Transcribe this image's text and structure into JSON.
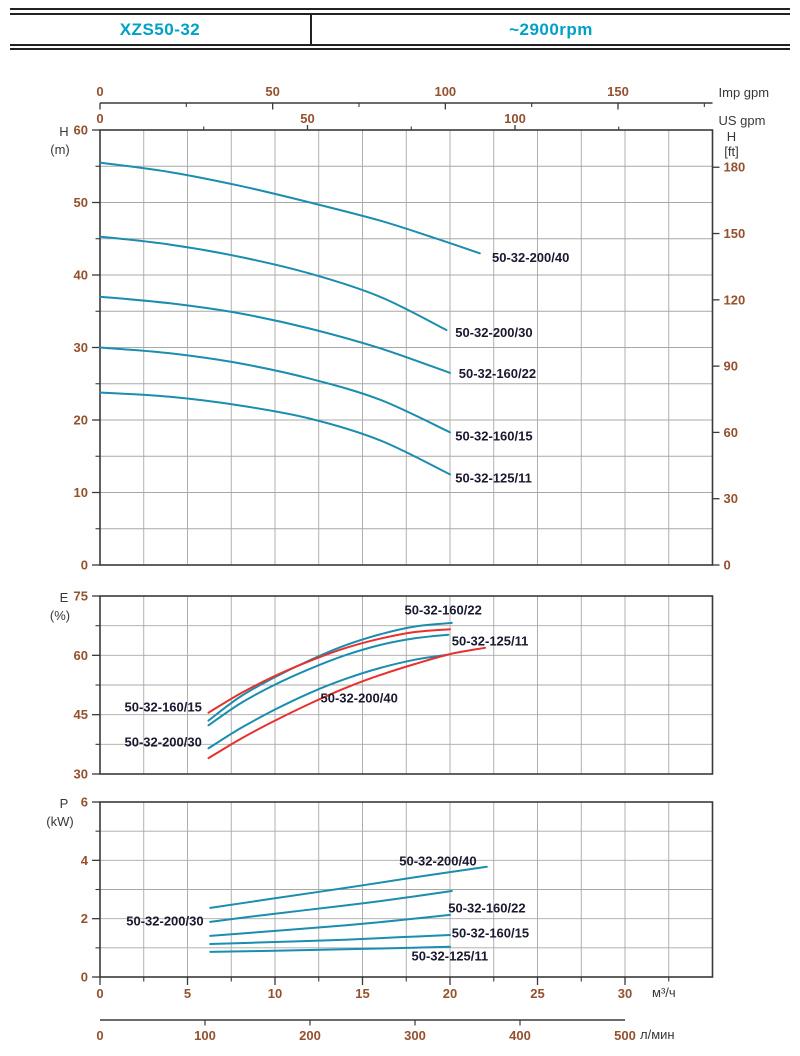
{
  "header": {
    "model": "XZS50-32",
    "speed": "~2900rpm"
  },
  "colors": {
    "teal": "#1b8dae",
    "red": "#e8312e",
    "grid": "#a8a8a8",
    "axis": "#3a3a3a",
    "tick_number": "#95502e",
    "curve_label": "#191930",
    "unit_label": "#38383a",
    "header_text": "#00a0c8"
  },
  "axes": {
    "imp_gpm": {
      "label": "Imp gpm",
      "major_ticks": [
        0,
        50,
        100,
        150
      ],
      "minor_ticks": [
        25,
        75,
        125,
        175
      ]
    },
    "us_gpm": {
      "label": "US gpm",
      "major_ticks": [
        0,
        50,
        100
      ],
      "minor_ticks": [
        25,
        75,
        125
      ]
    },
    "m3h": {
      "label": "м³/ч",
      "major_ticks": [
        0,
        5,
        10,
        15,
        20,
        25,
        30
      ],
      "minor_ticks": [
        2.5,
        7.5,
        12.5,
        17.5,
        22.5,
        27.5,
        32.5
      ]
    },
    "lmin": {
      "label": "л/мин",
      "major_ticks": [
        0,
        100,
        200,
        300,
        400,
        500
      ],
      "tick_marks": [
        100,
        200,
        300,
        400
      ]
    },
    "h_ft": {
      "label_line1": "H",
      "label_line2": "[ft]",
      "ticks": [
        0,
        30,
        60,
        90,
        120,
        150,
        180
      ]
    }
  },
  "chart_data": [
    {
      "id": "H",
      "type": "line",
      "grid": true,
      "ylabel_line1": "H",
      "ylabel_line2": "(m)",
      "xlabel": "м³/ч",
      "xlim": [
        0,
        35
      ],
      "ylim": [
        0,
        60
      ],
      "yticks": [
        0,
        10,
        20,
        30,
        40,
        50,
        60
      ],
      "yticks_minor": [
        5,
        15,
        25,
        35,
        45,
        55
      ],
      "series": [
        {
          "name": "50-32-200/40",
          "color": "teal",
          "points": [
            [
              0,
              55.5
            ],
            [
              4,
              54.2
            ],
            [
              8,
              52.3
            ],
            [
              12,
              50.0
            ],
            [
              16,
              47.5
            ],
            [
              19,
              45.2
            ],
            [
              21.7,
              43.0
            ]
          ],
          "label_at": [
            22.4,
            42.4
          ]
        },
        {
          "name": "50-32-200/30",
          "color": "teal",
          "points": [
            [
              0,
              45.3
            ],
            [
              4,
              44.2
            ],
            [
              8,
              42.5
            ],
            [
              12,
              40.2
            ],
            [
              16,
              37.0
            ],
            [
              19.8,
              32.4
            ]
          ],
          "label_at": [
            20.3,
            32.1
          ]
        },
        {
          "name": "50-32-160/22",
          "color": "teal",
          "points": [
            [
              0,
              37.0
            ],
            [
              4,
              36.1
            ],
            [
              8,
              34.7
            ],
            [
              12,
              32.6
            ],
            [
              16,
              29.9
            ],
            [
              20,
              26.5
            ]
          ],
          "label_at": [
            20.5,
            26.4
          ]
        },
        {
          "name": "50-32-160/15",
          "color": "teal",
          "points": [
            [
              0,
              30.0
            ],
            [
              4,
              29.2
            ],
            [
              8,
              27.8
            ],
            [
              12,
              25.7
            ],
            [
              16,
              22.8
            ],
            [
              20,
              18.3
            ]
          ],
          "label_at": [
            20.3,
            17.8
          ]
        },
        {
          "name": "50-32-125/11",
          "color": "teal",
          "points": [
            [
              0,
              23.8
            ],
            [
              4,
              23.2
            ],
            [
              8,
              22.0
            ],
            [
              12,
              20.2
            ],
            [
              16,
              17.2
            ],
            [
              20,
              12.5
            ]
          ],
          "label_at": [
            20.3,
            12.0
          ]
        }
      ]
    },
    {
      "id": "E",
      "type": "line",
      "grid": true,
      "ylabel_line1": "E",
      "ylabel_line2": "(%)",
      "xlabel": "м³/ч",
      "xlim": [
        0,
        35
      ],
      "ylim": [
        30,
        75
      ],
      "yticks": [
        30,
        45,
        60,
        75
      ],
      "yticks_minor": [
        37.5,
        52.5,
        67.5
      ],
      "series": [
        {
          "name": "50-32-160/22",
          "color": "teal",
          "points": [
            [
              6.2,
              43.5
            ],
            [
              8,
              49.5
            ],
            [
              10,
              54.5
            ],
            [
              12,
              58.8
            ],
            [
              14,
              62.5
            ],
            [
              16,
              65.3
            ],
            [
              18,
              67.3
            ],
            [
              20.1,
              68.2
            ]
          ],
          "label_at": [
            17.4,
            71.5
          ]
        },
        {
          "name": "50-32-125/11",
          "color": "teal",
          "points": [
            [
              6.2,
              42.3
            ],
            [
              8,
              47.8
            ],
            [
              10,
              52.6
            ],
            [
              12,
              56.6
            ],
            [
              14,
              60.0
            ],
            [
              16,
              62.6
            ],
            [
              18,
              64.3
            ],
            [
              19.9,
              65.2
            ]
          ],
          "label_at": [
            20.1,
            63.6
          ]
        },
        {
          "name": "50-32-200/30",
          "color": "teal",
          "points": [
            [
              6.2,
              36.5
            ],
            [
              8,
              41.5
            ],
            [
              10,
              46.3
            ],
            [
              12,
              50.5
            ],
            [
              14,
              54.0
            ],
            [
              16,
              56.8
            ],
            [
              18,
              58.9
            ],
            [
              19.8,
              60.1
            ]
          ],
          "label_at": [
            1.4,
            38.1
          ]
        },
        {
          "name": "50-32-160/15",
          "color": "red",
          "points": [
            [
              6.2,
              45.5
            ],
            [
              8,
              50.3
            ],
            [
              10,
              54.8
            ],
            [
              12,
              58.6
            ],
            [
              14,
              61.8
            ],
            [
              16,
              64.2
            ],
            [
              18,
              65.9
            ],
            [
              20,
              66.6
            ]
          ],
          "label_at": [
            1.4,
            46.9
          ]
        },
        {
          "name": "50-32-200/40",
          "color": "red",
          "points": [
            [
              6.2,
              34.0
            ],
            [
              8,
              38.8
            ],
            [
              10,
              43.5
            ],
            [
              12,
              47.8
            ],
            [
              14,
              51.7
            ],
            [
              16,
              55.0
            ],
            [
              18,
              57.8
            ],
            [
              20,
              60.3
            ],
            [
              22,
              61.9
            ]
          ],
          "label_at": [
            12.6,
            49.2
          ]
        }
      ]
    },
    {
      "id": "P",
      "type": "line",
      "grid": true,
      "ylabel_line1": "P",
      "ylabel_line2": "(kW)",
      "xlabel": "м³/ч",
      "xlim": [
        0,
        35
      ],
      "ylim": [
        0,
        6
      ],
      "yticks": [
        0,
        2,
        4,
        6
      ],
      "yticks_minor": [
        1,
        3,
        5
      ],
      "series": [
        {
          "name": "50-32-200/40",
          "color": "teal",
          "points": [
            [
              6.3,
              2.37
            ],
            [
              10,
              2.7
            ],
            [
              14,
              3.05
            ],
            [
              18,
              3.42
            ],
            [
              22.1,
              3.78
            ]
          ],
          "label_at": [
            17.1,
            3.98
          ]
        },
        {
          "name": "50-32-200/30",
          "color": "teal",
          "points": [
            [
              6.3,
              1.89
            ],
            [
              10,
              2.17
            ],
            [
              14,
              2.45
            ],
            [
              17,
              2.68
            ],
            [
              20.1,
              2.95
            ]
          ],
          "label_at": [
            1.5,
            1.92
          ]
        },
        {
          "name": "50-32-160/22",
          "color": "teal",
          "points": [
            [
              6.3,
              1.41
            ],
            [
              10,
              1.58
            ],
            [
              14,
              1.77
            ],
            [
              17,
              1.94
            ],
            [
              20,
              2.13
            ]
          ],
          "label_at": [
            19.9,
            2.37
          ]
        },
        {
          "name": "50-32-160/15",
          "color": "teal",
          "points": [
            [
              6.3,
              1.13
            ],
            [
              10,
              1.2
            ],
            [
              14,
              1.28
            ],
            [
              17,
              1.36
            ],
            [
              20,
              1.44
            ]
          ],
          "label_at": [
            20.1,
            1.51
          ]
        },
        {
          "name": "50-32-125/11",
          "color": "teal",
          "points": [
            [
              6.3,
              0.86
            ],
            [
              10,
              0.9
            ],
            [
              14,
              0.95
            ],
            [
              17,
              0.99
            ],
            [
              20,
              1.04
            ]
          ],
          "label_at": [
            17.8,
            0.72
          ]
        }
      ]
    }
  ]
}
